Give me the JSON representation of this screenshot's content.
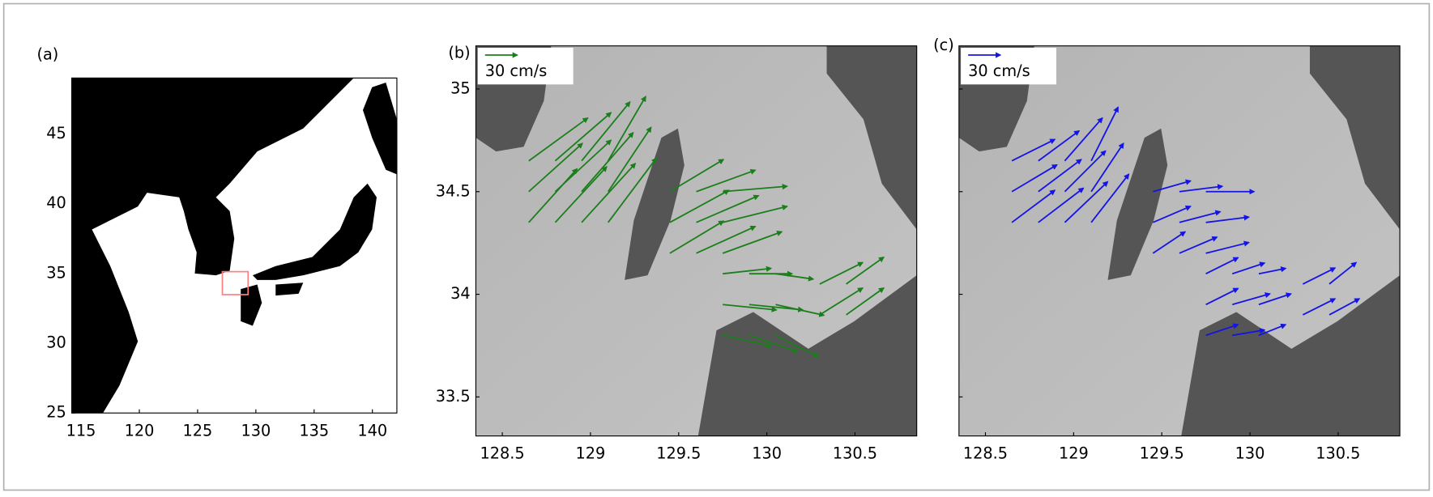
{
  "panels": [
    {
      "label": "(a)",
      "xlim": [
        114.2,
        142.1
      ],
      "ylim": [
        25,
        49
      ],
      "xticks": [
        115,
        120,
        125,
        130,
        135,
        140
      ],
      "yticks": [
        25,
        30,
        35,
        40,
        45
      ]
    },
    {
      "label": "(b)",
      "xlim": [
        128.35,
        130.85
      ],
      "ylim": [
        33.31,
        35.21
      ],
      "xticks": [
        128.5,
        129,
        129.5,
        130,
        130.5
      ],
      "yticks": [
        33.5,
        34,
        34.5,
        35
      ],
      "color": "#1a7f1a",
      "scale_label": "30 cm/s",
      "scale_value": 30,
      "lon": [
        128.65,
        128.8,
        128.95,
        129.1,
        128.65,
        128.8,
        128.95,
        129.1,
        128.65,
        128.8,
        128.95,
        129.1,
        129.45,
        129.6,
        129.75,
        129.45,
        129.6,
        129.75,
        129.45,
        129.6,
        129.75,
        129.75,
        129.9,
        130.05,
        129.75,
        129.9,
        130.05,
        129.75,
        129.9,
        130.05,
        130.3,
        130.45,
        130.3,
        130.45
      ],
      "lat": [
        34.35,
        34.35,
        34.35,
        34.35,
        34.5,
        34.5,
        34.5,
        34.5,
        34.65,
        34.65,
        34.65,
        34.65,
        34.2,
        34.2,
        34.2,
        34.35,
        34.35,
        34.35,
        34.5,
        34.5,
        34.5,
        33.8,
        33.8,
        33.8,
        33.95,
        33.95,
        33.95,
        34.1,
        34.1,
        34.1,
        33.9,
        33.9,
        34.05,
        34.05
      ],
      "u": [
        45,
        48,
        50,
        45,
        50,
        52,
        48,
        40,
        55,
        52,
        45,
        35,
        50,
        55,
        55,
        55,
        58,
        60,
        50,
        55,
        60,
        45,
        45,
        40,
        50,
        50,
        45,
        45,
        40,
        35,
        40,
        35,
        40,
        35
      ],
      "v": [
        50,
        52,
        55,
        60,
        45,
        48,
        55,
        60,
        40,
        45,
        55,
        60,
        30,
        25,
        20,
        30,
        25,
        15,
        30,
        20,
        5,
        -10,
        -15,
        -20,
        -5,
        -5,
        -10,
        5,
        0,
        -5,
        25,
        25,
        20,
        25
      ]
    },
    {
      "label": "(c)",
      "xlim": [
        128.35,
        130.85
      ],
      "ylim": [
        33.31,
        35.21
      ],
      "xticks": [
        128.5,
        129,
        129.5,
        130,
        130.5
      ],
      "yticks": [
        33.5,
        34,
        34.5,
        35
      ],
      "color": "#1414e6",
      "scale_label": "30 cm/s",
      "scale_value": 30,
      "lon": [
        128.65,
        128.8,
        128.95,
        129.1,
        128.65,
        128.8,
        128.95,
        129.1,
        128.65,
        128.8,
        128.95,
        129.1,
        129.45,
        129.6,
        129.75,
        129.45,
        129.6,
        129.75,
        129.45,
        129.6,
        129.75,
        129.75,
        129.9,
        130.05,
        129.75,
        129.9,
        130.05,
        129.75,
        129.9,
        130.05,
        130.3,
        130.45,
        130.3,
        130.45
      ],
      "lat": [
        34.35,
        34.35,
        34.35,
        34.35,
        34.5,
        34.5,
        34.5,
        34.5,
        34.65,
        34.65,
        34.65,
        34.65,
        34.2,
        34.2,
        34.2,
        34.35,
        34.35,
        34.35,
        34.5,
        34.5,
        34.5,
        33.8,
        33.8,
        33.8,
        33.95,
        33.95,
        33.95,
        34.1,
        34.1,
        34.1,
        33.9,
        33.9,
        34.05,
        34.05
      ],
      "u": [
        40,
        42,
        40,
        35,
        42,
        40,
        38,
        30,
        40,
        38,
        35,
        25,
        30,
        35,
        40,
        35,
        38,
        40,
        35,
        40,
        45,
        30,
        30,
        25,
        30,
        35,
        30,
        30,
        30,
        25,
        30,
        28,
        30,
        25
      ],
      "v": [
        30,
        32,
        38,
        45,
        25,
        30,
        38,
        45,
        20,
        28,
        40,
        50,
        20,
        15,
        10,
        15,
        10,
        5,
        10,
        5,
        0,
        10,
        5,
        10,
        15,
        10,
        10,
        15,
        10,
        5,
        15,
        15,
        15,
        20
      ]
    }
  ]
}
